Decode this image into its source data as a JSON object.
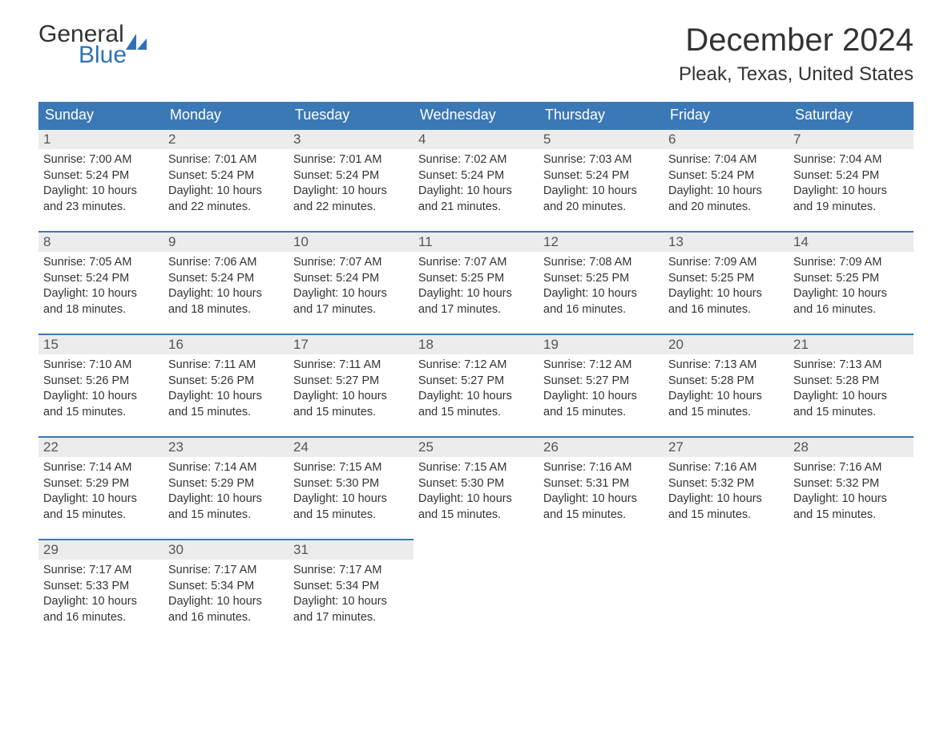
{
  "logo": {
    "word1": "General",
    "word2": "Blue",
    "accent_color": "#2f71b3"
  },
  "title": "December 2024",
  "location": "Pleak, Texas, United States",
  "colors": {
    "header_bg": "#3b78b6",
    "header_text": "#ffffff",
    "daynum_bg": "#ececec",
    "daynum_border": "#3b78b6",
    "body_text": "#333333",
    "background": "#ffffff"
  },
  "day_headers": [
    "Sunday",
    "Monday",
    "Tuesday",
    "Wednesday",
    "Thursday",
    "Friday",
    "Saturday"
  ],
  "weeks": [
    [
      {
        "n": "1",
        "sr": "Sunrise: 7:00 AM",
        "ss": "Sunset: 5:24 PM",
        "d1": "Daylight: 10 hours",
        "d2": "and 23 minutes."
      },
      {
        "n": "2",
        "sr": "Sunrise: 7:01 AM",
        "ss": "Sunset: 5:24 PM",
        "d1": "Daylight: 10 hours",
        "d2": "and 22 minutes."
      },
      {
        "n": "3",
        "sr": "Sunrise: 7:01 AM",
        "ss": "Sunset: 5:24 PM",
        "d1": "Daylight: 10 hours",
        "d2": "and 22 minutes."
      },
      {
        "n": "4",
        "sr": "Sunrise: 7:02 AM",
        "ss": "Sunset: 5:24 PM",
        "d1": "Daylight: 10 hours",
        "d2": "and 21 minutes."
      },
      {
        "n": "5",
        "sr": "Sunrise: 7:03 AM",
        "ss": "Sunset: 5:24 PM",
        "d1": "Daylight: 10 hours",
        "d2": "and 20 minutes."
      },
      {
        "n": "6",
        "sr": "Sunrise: 7:04 AM",
        "ss": "Sunset: 5:24 PM",
        "d1": "Daylight: 10 hours",
        "d2": "and 20 minutes."
      },
      {
        "n": "7",
        "sr": "Sunrise: 7:04 AM",
        "ss": "Sunset: 5:24 PM",
        "d1": "Daylight: 10 hours",
        "d2": "and 19 minutes."
      }
    ],
    [
      {
        "n": "8",
        "sr": "Sunrise: 7:05 AM",
        "ss": "Sunset: 5:24 PM",
        "d1": "Daylight: 10 hours",
        "d2": "and 18 minutes."
      },
      {
        "n": "9",
        "sr": "Sunrise: 7:06 AM",
        "ss": "Sunset: 5:24 PM",
        "d1": "Daylight: 10 hours",
        "d2": "and 18 minutes."
      },
      {
        "n": "10",
        "sr": "Sunrise: 7:07 AM",
        "ss": "Sunset: 5:24 PM",
        "d1": "Daylight: 10 hours",
        "d2": "and 17 minutes."
      },
      {
        "n": "11",
        "sr": "Sunrise: 7:07 AM",
        "ss": "Sunset: 5:25 PM",
        "d1": "Daylight: 10 hours",
        "d2": "and 17 minutes."
      },
      {
        "n": "12",
        "sr": "Sunrise: 7:08 AM",
        "ss": "Sunset: 5:25 PM",
        "d1": "Daylight: 10 hours",
        "d2": "and 16 minutes."
      },
      {
        "n": "13",
        "sr": "Sunrise: 7:09 AM",
        "ss": "Sunset: 5:25 PM",
        "d1": "Daylight: 10 hours",
        "d2": "and 16 minutes."
      },
      {
        "n": "14",
        "sr": "Sunrise: 7:09 AM",
        "ss": "Sunset: 5:25 PM",
        "d1": "Daylight: 10 hours",
        "d2": "and 16 minutes."
      }
    ],
    [
      {
        "n": "15",
        "sr": "Sunrise: 7:10 AM",
        "ss": "Sunset: 5:26 PM",
        "d1": "Daylight: 10 hours",
        "d2": "and 15 minutes."
      },
      {
        "n": "16",
        "sr": "Sunrise: 7:11 AM",
        "ss": "Sunset: 5:26 PM",
        "d1": "Daylight: 10 hours",
        "d2": "and 15 minutes."
      },
      {
        "n": "17",
        "sr": "Sunrise: 7:11 AM",
        "ss": "Sunset: 5:27 PM",
        "d1": "Daylight: 10 hours",
        "d2": "and 15 minutes."
      },
      {
        "n": "18",
        "sr": "Sunrise: 7:12 AM",
        "ss": "Sunset: 5:27 PM",
        "d1": "Daylight: 10 hours",
        "d2": "and 15 minutes."
      },
      {
        "n": "19",
        "sr": "Sunrise: 7:12 AM",
        "ss": "Sunset: 5:27 PM",
        "d1": "Daylight: 10 hours",
        "d2": "and 15 minutes."
      },
      {
        "n": "20",
        "sr": "Sunrise: 7:13 AM",
        "ss": "Sunset: 5:28 PM",
        "d1": "Daylight: 10 hours",
        "d2": "and 15 minutes."
      },
      {
        "n": "21",
        "sr": "Sunrise: 7:13 AM",
        "ss": "Sunset: 5:28 PM",
        "d1": "Daylight: 10 hours",
        "d2": "and 15 minutes."
      }
    ],
    [
      {
        "n": "22",
        "sr": "Sunrise: 7:14 AM",
        "ss": "Sunset: 5:29 PM",
        "d1": "Daylight: 10 hours",
        "d2": "and 15 minutes."
      },
      {
        "n": "23",
        "sr": "Sunrise: 7:14 AM",
        "ss": "Sunset: 5:29 PM",
        "d1": "Daylight: 10 hours",
        "d2": "and 15 minutes."
      },
      {
        "n": "24",
        "sr": "Sunrise: 7:15 AM",
        "ss": "Sunset: 5:30 PM",
        "d1": "Daylight: 10 hours",
        "d2": "and 15 minutes."
      },
      {
        "n": "25",
        "sr": "Sunrise: 7:15 AM",
        "ss": "Sunset: 5:30 PM",
        "d1": "Daylight: 10 hours",
        "d2": "and 15 minutes."
      },
      {
        "n": "26",
        "sr": "Sunrise: 7:16 AM",
        "ss": "Sunset: 5:31 PM",
        "d1": "Daylight: 10 hours",
        "d2": "and 15 minutes."
      },
      {
        "n": "27",
        "sr": "Sunrise: 7:16 AM",
        "ss": "Sunset: 5:32 PM",
        "d1": "Daylight: 10 hours",
        "d2": "and 15 minutes."
      },
      {
        "n": "28",
        "sr": "Sunrise: 7:16 AM",
        "ss": "Sunset: 5:32 PM",
        "d1": "Daylight: 10 hours",
        "d2": "and 15 minutes."
      }
    ],
    [
      {
        "n": "29",
        "sr": "Sunrise: 7:17 AM",
        "ss": "Sunset: 5:33 PM",
        "d1": "Daylight: 10 hours",
        "d2": "and 16 minutes."
      },
      {
        "n": "30",
        "sr": "Sunrise: 7:17 AM",
        "ss": "Sunset: 5:34 PM",
        "d1": "Daylight: 10 hours",
        "d2": "and 16 minutes."
      },
      {
        "n": "31",
        "sr": "Sunrise: 7:17 AM",
        "ss": "Sunset: 5:34 PM",
        "d1": "Daylight: 10 hours",
        "d2": "and 17 minutes."
      },
      null,
      null,
      null,
      null
    ]
  ]
}
